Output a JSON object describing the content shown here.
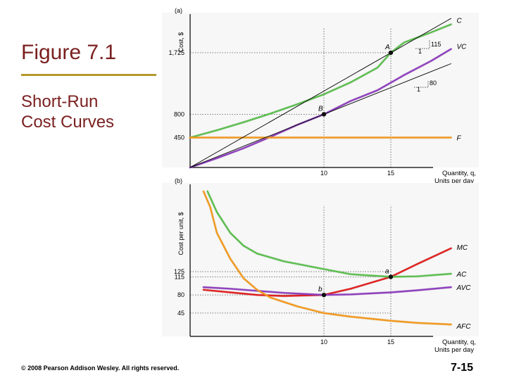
{
  "slide": {
    "title": "Figure 7.1",
    "subtitle_lines": [
      "Short-Run",
      "Cost Curves"
    ],
    "copyright": "© 2008 Pearson Addison Wesley. All rights reserved.",
    "page_number": "7-15"
  },
  "colors": {
    "title": "#7a1f1f",
    "rule": "#b39a2e",
    "C": "#5cbf4f",
    "VC": "#8e3fbe",
    "F": "#f39a1e",
    "tangent": "#000000",
    "MC": "#e02020",
    "AC": "#5cbf4f",
    "AVC": "#8e3fbe",
    "AFC": "#f39a1e"
  },
  "chart_data": [
    {
      "type": "line",
      "panel_label": "(a)",
      "ylabel": "Cost, $",
      "xlabel_lines": [
        "Quantity, q,",
        "Units per day"
      ],
      "xlim": [
        0,
        20
      ],
      "ylim": [
        0,
        2200
      ],
      "xticks": [
        {
          "value": 10,
          "label": "10"
        },
        {
          "value": 15,
          "label": "15"
        }
      ],
      "yticks": [
        {
          "value": 450,
          "label": "450"
        },
        {
          "value": 800,
          "label": "800"
        },
        {
          "value": 1725,
          "label": "1,725"
        }
      ],
      "series": [
        {
          "name": "C",
          "label": "C",
          "color_key": "C",
          "x": [
            0,
            2,
            4,
            6,
            8,
            10,
            12,
            14,
            15,
            16,
            18,
            19.5
          ],
          "y": [
            450,
            560,
            680,
            810,
            950,
            1100,
            1280,
            1500,
            1725,
            1880,
            2030,
            2150
          ]
        },
        {
          "name": "VC",
          "label": "VC",
          "color_key": "VC",
          "x": [
            0,
            2,
            4,
            6,
            8,
            10,
            12,
            14,
            15,
            16,
            18,
            19.5
          ],
          "y": [
            0,
            140,
            290,
            460,
            640,
            800,
            1000,
            1160,
            1275,
            1390,
            1600,
            1780
          ]
        },
        {
          "name": "F",
          "label": "F",
          "color_key": "F",
          "x": [
            0,
            19.5
          ],
          "y": [
            450,
            450
          ]
        },
        {
          "name": "tangent_A",
          "label": "",
          "color_key": "tangent",
          "x": [
            0,
            19.5
          ],
          "y": [
            0,
            2240
          ]
        },
        {
          "name": "tangent_B",
          "label": "",
          "color_key": "tangent",
          "x": [
            0,
            19.5
          ],
          "y": [
            0,
            1560
          ]
        }
      ],
      "points": [
        {
          "label": "A",
          "x": 15,
          "y": 1725
        },
        {
          "label": "B",
          "x": 10,
          "y": 800
        }
      ],
      "annotations": [
        {
          "text": "115",
          "note": "slope of tangent at A"
        },
        {
          "text": "1",
          "note": "run for slope 115"
        },
        {
          "text": "80",
          "note": "slope of tangent at B"
        },
        {
          "text": "1",
          "note": "run for slope 80"
        }
      ]
    },
    {
      "type": "line",
      "panel_label": "(b)",
      "ylabel": "Cost per unit, $",
      "xlabel_lines": [
        "Quantity, q,",
        "Units per day"
      ],
      "xlim": [
        0,
        20
      ],
      "ylim": [
        0,
        280
      ],
      "xticks": [
        {
          "value": 10,
          "label": "10"
        },
        {
          "value": 15,
          "label": "15"
        }
      ],
      "yticks": [
        {
          "value": 45,
          "label": "45"
        },
        {
          "value": 80,
          "label": "80"
        },
        {
          "value": 115,
          "label": "115"
        },
        {
          "value": 125,
          "label": "125"
        }
      ],
      "series": [
        {
          "name": "MC",
          "label": "MC",
          "color_key": "MC",
          "x": [
            1,
            3,
            5,
            7,
            10,
            12,
            15,
            17,
            19.5
          ],
          "y": [
            90,
            85,
            80,
            78,
            80,
            92,
            115,
            140,
            170
          ]
        },
        {
          "name": "AC",
          "label": "AC",
          "color_key": "AC",
          "x": [
            1.3,
            2,
            3,
            4,
            5,
            7,
            10,
            12,
            15,
            17,
            19.5
          ],
          "y": [
            280,
            240,
            200,
            175,
            160,
            145,
            130,
            120,
            115,
            116,
            121
          ]
        },
        {
          "name": "AVC",
          "label": "AVC",
          "color_key": "AVC",
          "x": [
            1,
            3,
            5,
            7,
            10,
            12,
            15,
            17,
            19.5
          ],
          "y": [
            95,
            92,
            88,
            84,
            80,
            81,
            85,
            89,
            95
          ]
        },
        {
          "name": "AFC",
          "label": "AFC",
          "color_key": "AFC",
          "x": [
            1,
            1.5,
            2,
            3,
            4,
            5,
            6,
            8,
            10,
            12,
            15,
            17,
            19.5
          ],
          "y": [
            280,
            250,
            200,
            150,
            112,
            90,
            75,
            58,
            45,
            38,
            30,
            26,
            23
          ]
        }
      ],
      "points": [
        {
          "label": "a",
          "x": 15,
          "y": 115
        },
        {
          "label": "b",
          "x": 10,
          "y": 80
        }
      ]
    }
  ]
}
